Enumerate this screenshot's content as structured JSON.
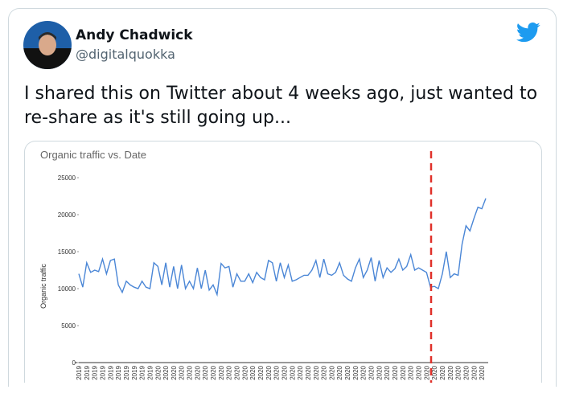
{
  "tweet": {
    "author": "Andy Chadwick",
    "handle": "@digitalquokka",
    "text": "I shared this on Twitter about 4 weeks ago, just wanted to re-share as it's still going up..."
  },
  "chart_data": {
    "type": "line",
    "title": "Organic traffic vs. Date",
    "y_label": "Organic traffic",
    "color": "#4a86d6",
    "grid": false,
    "ylim": [
      0,
      25000
    ],
    "yticks": [
      0,
      5000,
      10000,
      15000,
      20000,
      25000
    ],
    "categories": [
      "2019",
      null,
      "2019",
      null,
      "2019",
      null,
      "2019",
      null,
      "2019",
      null,
      "2019",
      null,
      "2019",
      null,
      "2019",
      null,
      "2019",
      null,
      "2019",
      null,
      "2020",
      null,
      "2020",
      null,
      "2020",
      null,
      "2020",
      null,
      "2020",
      null,
      "2020",
      null,
      "2020",
      null,
      "2020",
      null,
      "2020",
      null,
      "2020",
      null,
      "2020",
      null,
      "2020",
      null,
      "2020",
      null,
      "2020",
      null,
      "2020",
      null,
      "2020",
      null,
      "2020",
      null,
      "2020",
      null,
      "2020",
      null,
      "2020",
      null,
      "2020",
      null,
      "2020",
      null,
      "2020",
      null,
      "2020",
      null,
      "2020",
      null,
      "2020",
      null,
      "2020",
      null,
      "2020",
      null,
      "2020",
      null,
      "2020",
      null,
      "2020",
      null,
      "2020",
      null,
      "2020",
      null,
      "2020",
      null,
      "2020",
      null,
      "2020",
      null,
      "2020",
      null,
      "2020",
      null,
      "2020",
      null,
      "2020",
      null,
      "2020",
      null,
      "2020",
      null
    ],
    "values": [
      12000,
      10200,
      13500,
      12200,
      12500,
      12300,
      14000,
      12000,
      13800,
      14000,
      10500,
      9500,
      11000,
      10500,
      10200,
      10000,
      11000,
      10200,
      10000,
      13500,
      13000,
      10500,
      13500,
      10200,
      13000,
      10000,
      13200,
      10000,
      11000,
      10000,
      12800,
      10000,
      12500,
      9800,
      10500,
      9200,
      13400,
      12800,
      13000,
      10200,
      12000,
      11000,
      11000,
      12000,
      10800,
      12200,
      11500,
      11200,
      13800,
      13500,
      11000,
      13500,
      11500,
      13200,
      11000,
      11200,
      11500,
      11800,
      11800,
      12500,
      13800,
      11500,
      14000,
      12000,
      11800,
      12200,
      13500,
      11800,
      11300,
      11000,
      12800,
      14000,
      11500,
      12500,
      14200,
      11000,
      13800,
      11500,
      12800,
      12200,
      12700,
      14000,
      12500,
      13000,
      14600,
      12500,
      12800,
      12500,
      12200,
      10200,
      10300,
      10000,
      12000,
      15000,
      11500,
      12000,
      11800,
      16000,
      18500,
      17800,
      19500,
      21000,
      20800,
      22200
    ]
  }
}
